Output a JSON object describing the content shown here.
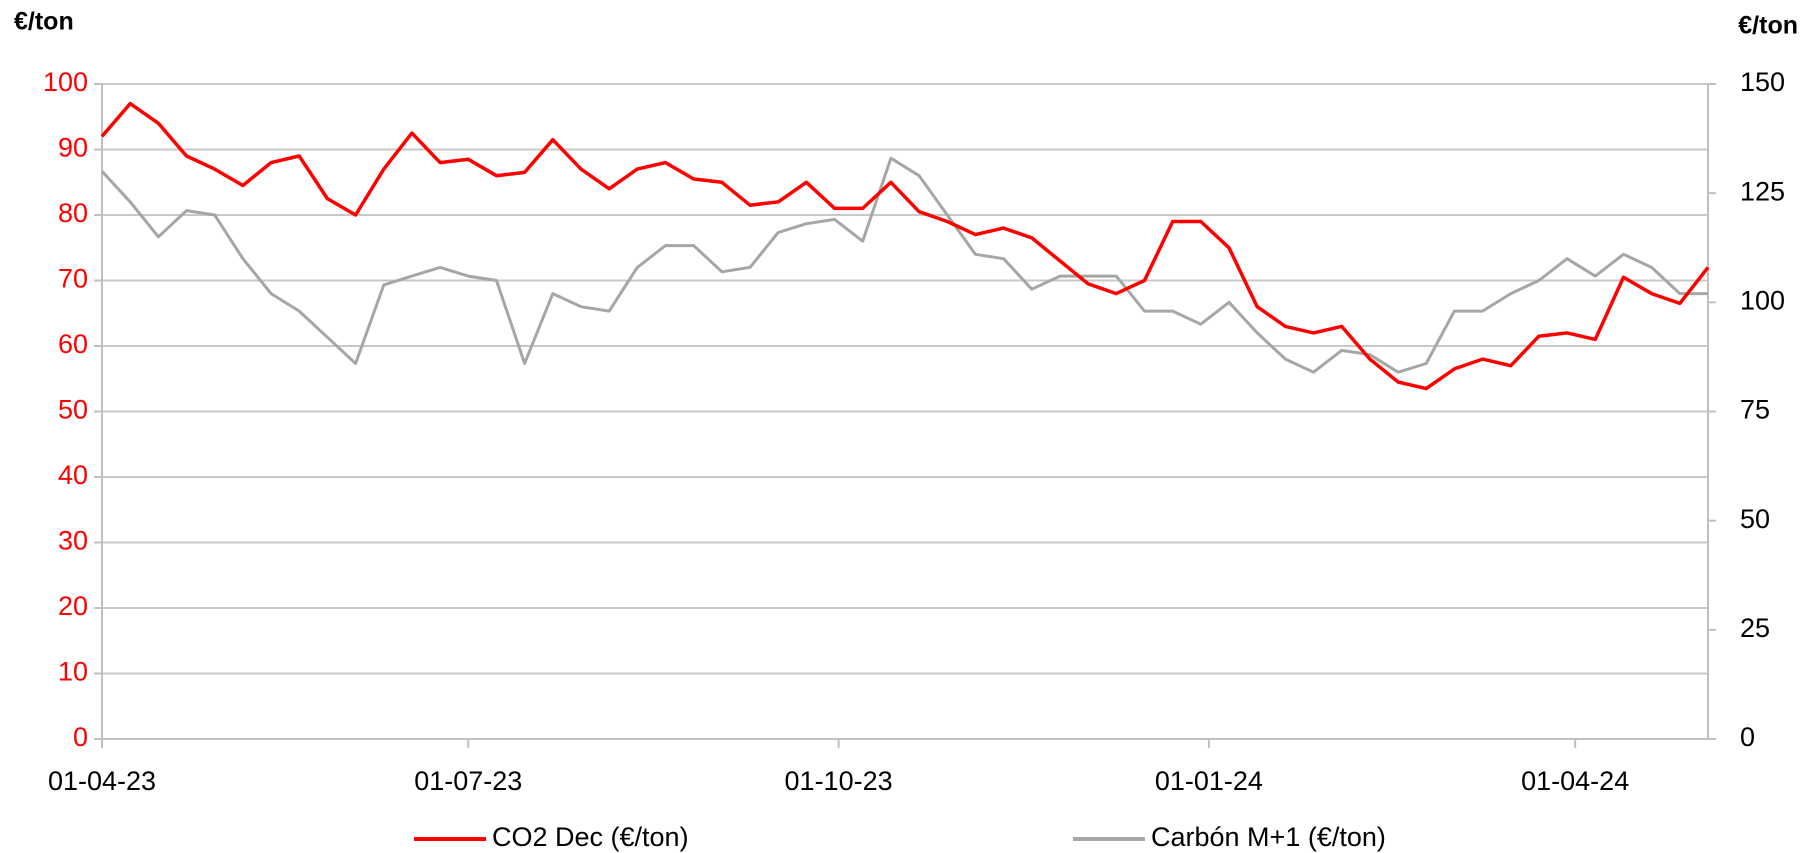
{
  "chart_data": {
    "type": "line",
    "y_axis_label": "€/ton",
    "y2_axis_label": "€/ton",
    "x": [
      "2023-04-01",
      "2023-04-08",
      "2023-04-15",
      "2023-04-22",
      "2023-04-29",
      "2023-05-06",
      "2023-05-13",
      "2023-05-20",
      "2023-05-27",
      "2023-06-03",
      "2023-06-10",
      "2023-06-17",
      "2023-06-24",
      "2023-07-01",
      "2023-07-08",
      "2023-07-15",
      "2023-07-22",
      "2023-07-29",
      "2023-08-05",
      "2023-08-12",
      "2023-08-19",
      "2023-08-26",
      "2023-09-02",
      "2023-09-09",
      "2023-09-16",
      "2023-09-23",
      "2023-09-30",
      "2023-10-07",
      "2023-10-14",
      "2023-10-21",
      "2023-10-28",
      "2023-11-04",
      "2023-11-11",
      "2023-11-18",
      "2023-11-25",
      "2023-12-02",
      "2023-12-09",
      "2023-12-16",
      "2023-12-23",
      "2023-12-30",
      "2024-01-06",
      "2024-01-13",
      "2024-01-20",
      "2024-01-27",
      "2024-02-03",
      "2024-02-10",
      "2024-02-17",
      "2024-02-24",
      "2024-03-02",
      "2024-03-09",
      "2024-03-16",
      "2024-03-23",
      "2024-03-30",
      "2024-04-06",
      "2024-04-13",
      "2024-04-20",
      "2024-04-27",
      "2024-05-04"
    ],
    "series": [
      {
        "name": "CO2 Dec (€/ton)",
        "color": "#ff0000",
        "axis": "y",
        "values": [
          92,
          97,
          94,
          89,
          87,
          84.5,
          88,
          89,
          82.5,
          80,
          87,
          92.5,
          88,
          88.5,
          86,
          86.5,
          91.5,
          87,
          84,
          87,
          88,
          85.5,
          85,
          81.5,
          82,
          85,
          81,
          81,
          85,
          80.5,
          79,
          77,
          78,
          76.5,
          73,
          69.5,
          68,
          70,
          79,
          79,
          75,
          66,
          63,
          62,
          63,
          58,
          54.5,
          53.5,
          56.5,
          58,
          57,
          61.5,
          62,
          61,
          70.5,
          68,
          66.5,
          72
        ]
      },
      {
        "name": "Carbón M+1 (€/ton)",
        "color": "#a6a6a6",
        "axis": "y2",
        "values": [
          130,
          123,
          115,
          121,
          120,
          110,
          102,
          98,
          92,
          86,
          104,
          106,
          108,
          106,
          105,
          86,
          102,
          99,
          98,
          108,
          113,
          113,
          107,
          108,
          116,
          118,
          119,
          114,
          133,
          129,
          120,
          111,
          110,
          103,
          106,
          106,
          106,
          98,
          98,
          95,
          100,
          93,
          87,
          84,
          89,
          88,
          84,
          86,
          98,
          98,
          102,
          105,
          110,
          106,
          111,
          108,
          102,
          102
        ]
      }
    ],
    "xlim": [
      "2023-04-01",
      "2024-05-04"
    ],
    "xticks": [
      {
        "value": "2023-04-01",
        "label": "01-04-23"
      },
      {
        "value": "2023-07-01",
        "label": "01-07-23"
      },
      {
        "value": "2023-10-01",
        "label": "01-10-23"
      },
      {
        "value": "2024-01-01",
        "label": "01-01-24"
      },
      {
        "value": "2024-04-01",
        "label": "01-04-24"
      }
    ],
    "ylim": [
      0,
      100
    ],
    "yticks": [
      0,
      10,
      20,
      30,
      40,
      50,
      60,
      70,
      80,
      90,
      100
    ],
    "ytick_color": "#ff0000",
    "y2lim": [
      0,
      150
    ],
    "y2ticks": [
      0,
      25,
      50,
      75,
      100,
      125,
      150
    ],
    "grid": true
  }
}
